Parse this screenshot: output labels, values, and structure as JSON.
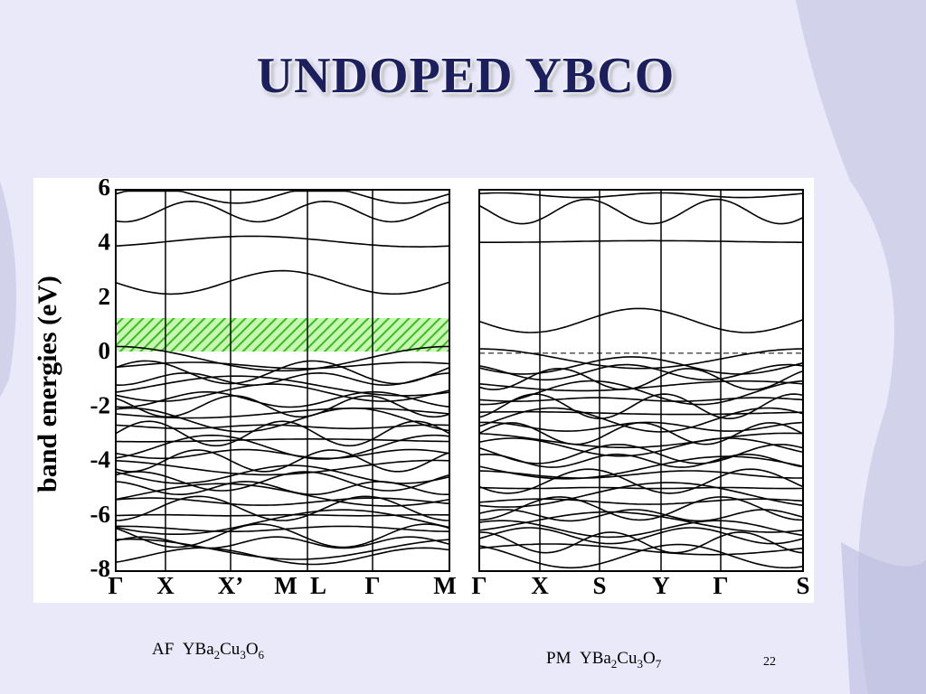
{
  "title": "UNDOPED YBCO",
  "figure": {
    "y_axis_label": "band energies (eV)",
    "y_ticks": [
      "6",
      "4",
      "2",
      "0",
      "-2",
      "-4",
      "-6",
      "-8"
    ],
    "left_panel": {
      "k_labels": [
        "Γ",
        "X",
        "X’",
        "M",
        "L",
        "Γ",
        "M"
      ]
    },
    "right_panel": {
      "k_labels": [
        "Γ",
        "X",
        "S",
        "Y",
        "Γ",
        "S"
      ]
    }
  },
  "captions": [
    {
      "label": "AF",
      "formula": [
        {
          "el": "YBa",
          "sub": "2"
        },
        {
          "el": "Cu",
          "sub": "3"
        },
        {
          "el": "O",
          "sub": "6"
        }
      ]
    },
    {
      "label": "PM",
      "formula": [
        {
          "el": "YBa",
          "sub": "2"
        },
        {
          "el": "Cu",
          "sub": "3"
        },
        {
          "el": "O",
          "sub": "7"
        }
      ]
    }
  ],
  "page_number": "22"
}
